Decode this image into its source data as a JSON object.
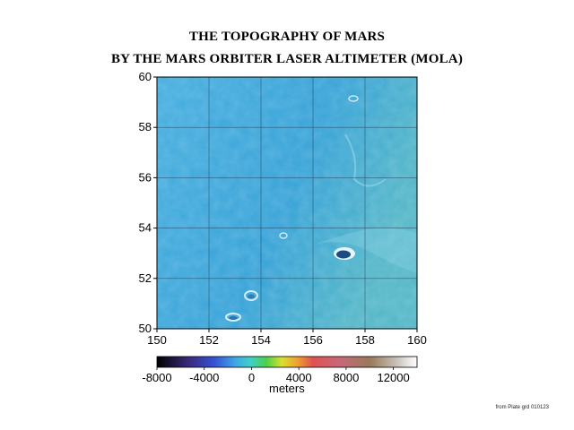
{
  "title_line1": "THE TOPOGRAPHY OF MARS",
  "title_line2": "BY THE MARS ORBITER LASER ALTIMETER (MOLA)",
  "map": {
    "lon_range": [
      150,
      160
    ],
    "lat_range": [
      50,
      60
    ],
    "x_ticks": [
      "150",
      "152",
      "154",
      "156",
      "158",
      "160"
    ],
    "y_ticks": [
      "50",
      "52",
      "54",
      "56",
      "58",
      "60"
    ],
    "grid": true,
    "surface_color": "#3fa7d8"
  },
  "colorbar": {
    "range": [
      -8000,
      14000
    ],
    "ticks": [
      "-8000",
      "-4000",
      "0",
      "4000",
      "8000",
      "12000"
    ],
    "units_label": "meters"
  },
  "credit": "from Plate grd 010123"
}
